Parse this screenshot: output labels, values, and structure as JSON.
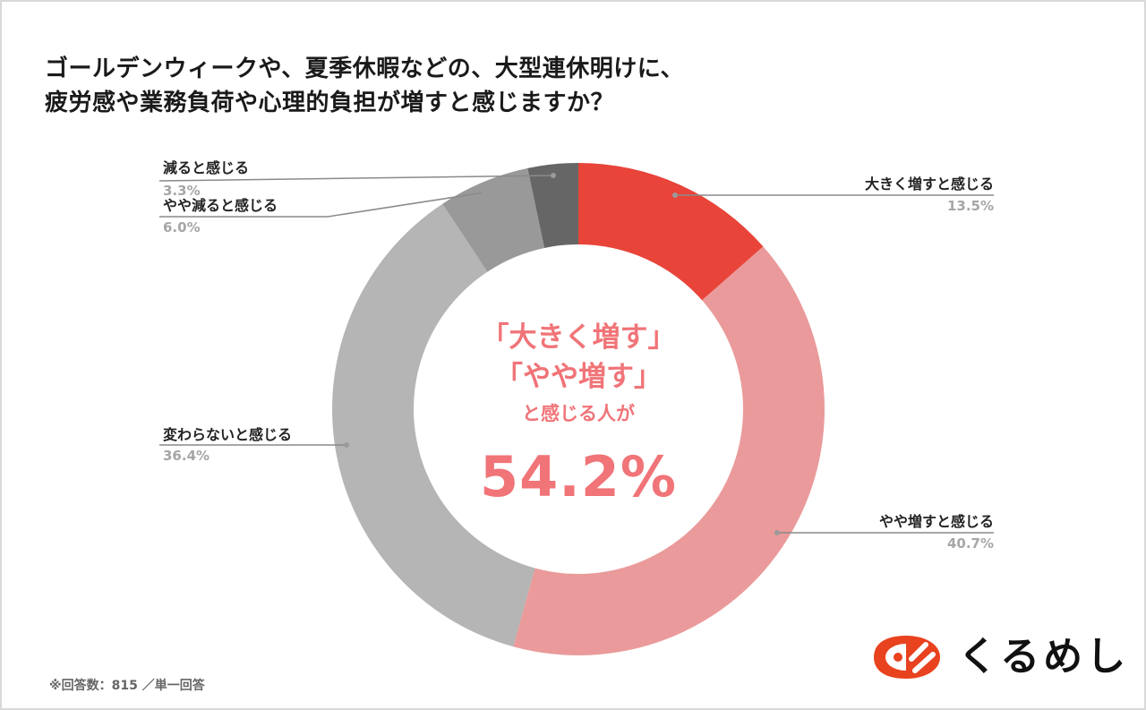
{
  "title": {
    "line1": "ゴールデンウィークや、夏季休暇などの、大型連休明けに、",
    "line2": "疲労感や業務負荷や心理的負担が増すと感じますか？"
  },
  "center": {
    "line1": "「大きく増す」",
    "line2": "「やや増す」",
    "line3": "と感じる人が",
    "value": "54.2%"
  },
  "labels": {
    "greatly_increase": {
      "label": "大きく増すと感じる",
      "pct": "13.5%"
    },
    "somewhat_increase": {
      "label": "やや増すと感じる",
      "pct": "40.7%"
    },
    "no_change": {
      "label": "変わらないと感じる",
      "pct": "36.4%"
    },
    "somewhat_decrease": {
      "label": "やや減ると感じる",
      "pct": "6.0%"
    },
    "decrease": {
      "label": "減ると感じる",
      "pct": "3.3%"
    }
  },
  "footnote": "※回答数：815 ／単一回答",
  "logo": {
    "text": "くるめし",
    "icon": "kurumeshi-logo-icon"
  },
  "colors": {
    "greatly_increase": "#e8443a",
    "somewhat_increase": "#ea9a9a",
    "no_change": "#b5b5b5",
    "somewhat_decrease": "#999999",
    "decrease": "#666666",
    "accent_text": "#f07478",
    "logo": "#e8421e"
  },
  "chart_data": {
    "type": "pie",
    "subtype": "donut",
    "title": "ゴールデンウィークや、夏季休暇などの、大型連休明けに、疲労感や業務負荷や心理的負担が増すと感じますか？",
    "categories": [
      "大きく増すと感じる",
      "やや増すと感じる",
      "変わらないと感じる",
      "やや減ると感じる",
      "減ると感じる"
    ],
    "values": [
      13.5,
      40.7,
      36.4,
      6.0,
      3.3
    ],
    "unit": "%",
    "colors": [
      "#e8443a",
      "#ea9a9a",
      "#b5b5b5",
      "#999999",
      "#666666"
    ],
    "start_angle": "12 o'clock, clockwise",
    "center_annotation": "「大きく増す」「やや増す」と感じる人が 54.2%",
    "sample_size": 815,
    "note": "単一回答",
    "legend": "callout labels with leader lines"
  }
}
